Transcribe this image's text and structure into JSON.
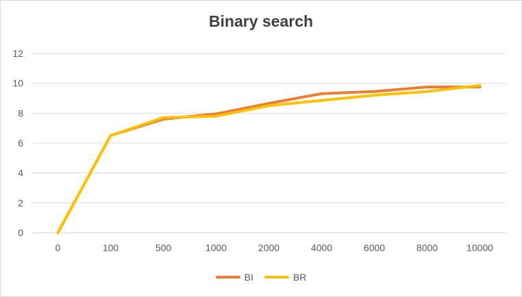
{
  "chart_data": {
    "type": "line",
    "title": "Binary search",
    "xlabel": "",
    "ylabel": "",
    "categories": [
      "0",
      "100",
      "500",
      "1000",
      "2000",
      "4000",
      "6000",
      "8000",
      "10000"
    ],
    "ylim": [
      0,
      12
    ],
    "yticks": [
      0,
      2,
      4,
      6,
      8,
      10,
      12
    ],
    "grid": true,
    "legend": "bottom",
    "series": [
      {
        "name": "BI",
        "color": "#ED7D31",
        "values": [
          0,
          6.5,
          7.6,
          7.95,
          8.65,
          9.3,
          9.45,
          9.75,
          9.75
        ]
      },
      {
        "name": "BR",
        "color": "#FFC000",
        "values": [
          0,
          6.5,
          7.7,
          7.8,
          8.5,
          8.85,
          9.2,
          9.45,
          9.85
        ]
      }
    ]
  }
}
